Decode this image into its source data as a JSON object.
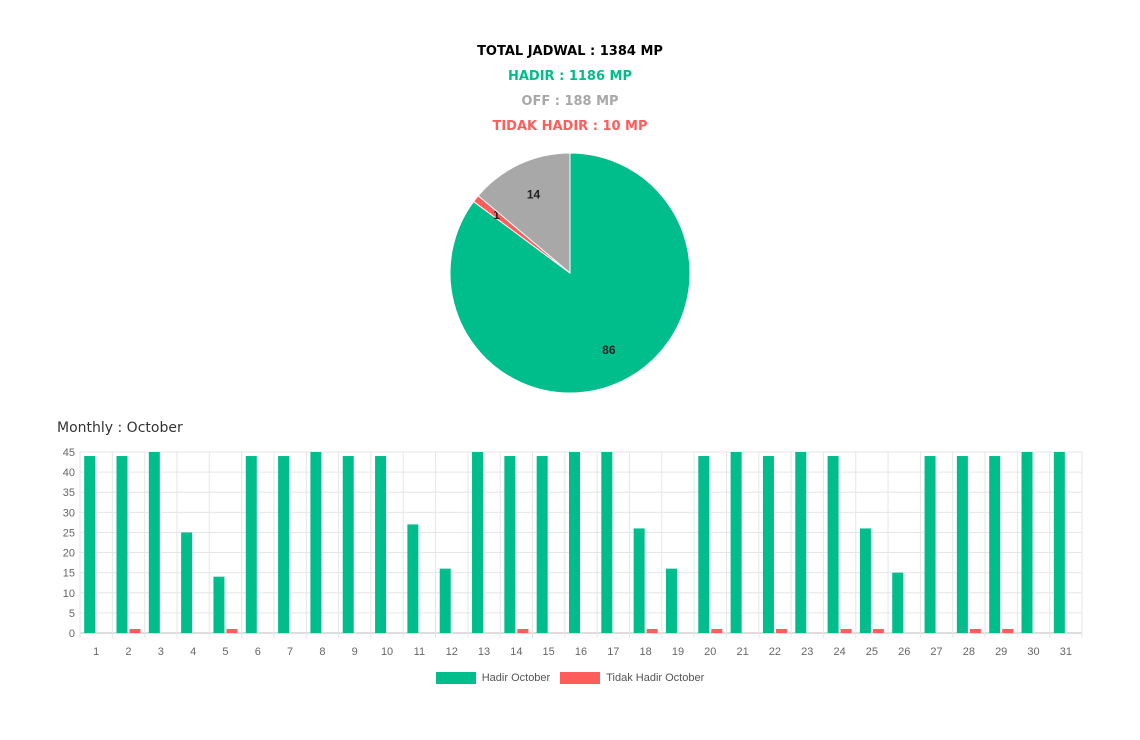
{
  "header": {
    "total": "TOTAL JADWAL : 1384 MP",
    "hadir": "HADIR : 1186 MP",
    "off": "OFF : 188 MP",
    "tidak_hadir": "TIDAK HADIR : 10 MP"
  },
  "colors": {
    "hadir": "#00be8b",
    "off": "#a8a8a8",
    "tidak_hadir": "#ff5c5c",
    "total": "#000000"
  },
  "monthly_title": "Monthly : October",
  "chart_data": [
    {
      "type": "pie",
      "slices": [
        {
          "name": "Hadir",
          "value": 86,
          "label": "86",
          "color": "#00be8b"
        },
        {
          "name": "Tidak Hadir",
          "value": 1,
          "label": "1",
          "color": "#ff5c5c"
        },
        {
          "name": "Off",
          "value": 14,
          "label": "14",
          "color": "#a8a8a8"
        }
      ]
    },
    {
      "type": "bar",
      "categories": [
        "1",
        "2",
        "3",
        "4",
        "5",
        "6",
        "7",
        "8",
        "9",
        "10",
        "11",
        "12",
        "13",
        "14",
        "15",
        "16",
        "17",
        "18",
        "19",
        "20",
        "21",
        "22",
        "23",
        "24",
        "25",
        "26",
        "27",
        "28",
        "29",
        "30",
        "31"
      ],
      "series": [
        {
          "name": "Hadir October",
          "color": "#00be8b",
          "values": [
            44,
            44,
            45,
            25,
            14,
            44,
            44,
            45,
            44,
            44,
            27,
            16,
            45,
            44,
            44,
            45,
            45,
            26,
            16,
            44,
            45,
            44,
            45,
            44,
            26,
            15,
            44,
            44,
            44,
            45,
            45
          ]
        },
        {
          "name": "Tidak Hadir October",
          "color": "#ff5c5c",
          "values": [
            0,
            1,
            0,
            0,
            1,
            0,
            0,
            0,
            0,
            0,
            0,
            0,
            0,
            1,
            0,
            0,
            0,
            1,
            0,
            1,
            0,
            1,
            0,
            1,
            1,
            0,
            0,
            1,
            1,
            0,
            0
          ]
        }
      ],
      "ylim": [
        0,
        45
      ],
      "yticks": [
        0,
        5,
        10,
        15,
        20,
        25,
        30,
        35,
        40,
        45
      ],
      "grid": true,
      "legend": "bottom"
    }
  ]
}
